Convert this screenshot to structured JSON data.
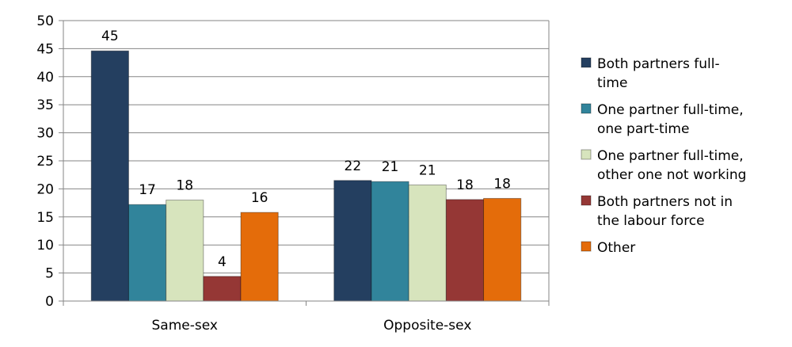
{
  "chart_data": {
    "type": "bar",
    "categories": [
      "Same-sex",
      "Opposite-sex"
    ],
    "series": [
      {
        "name": "Both partners full-time",
        "legend_lines": [
          "Both partners full-",
          "time"
        ],
        "color": "#243f60",
        "values": [
          44.6,
          21.5
        ],
        "labels": [
          "45",
          "22"
        ]
      },
      {
        "name": "One partner full-time, one part-time",
        "legend_lines": [
          "One partner full-time,",
          "one part-time"
        ],
        "color": "#31849b",
        "values": [
          17.2,
          21.3
        ],
        "labels": [
          "17",
          "21"
        ]
      },
      {
        "name": "One partner full-time, other one not working",
        "legend_lines": [
          "One partner full-time,",
          "other one not working"
        ],
        "color": "#d7e4bd",
        "values": [
          18.0,
          20.7
        ],
        "labels": [
          "18",
          "21"
        ]
      },
      {
        "name": "Both partners not in the labour force",
        "legend_lines": [
          "Both partners not in",
          "the labour force"
        ],
        "color": "#953735",
        "values": [
          4.4,
          18.1
        ],
        "labels": [
          "4",
          "18"
        ]
      },
      {
        "name": "Other",
        "legend_lines": [
          "Other"
        ],
        "color": "#e46c0a",
        "values": [
          15.8,
          18.3
        ],
        "labels": [
          "16",
          "18"
        ]
      }
    ],
    "title": "",
    "xlabel": "",
    "ylabel": "",
    "ylim": [
      0,
      50
    ],
    "yticks": [
      "0",
      "5",
      "10",
      "15",
      "20",
      "25",
      "30",
      "35",
      "40",
      "45",
      "50"
    ],
    "grid": true,
    "legend_position": "right"
  }
}
